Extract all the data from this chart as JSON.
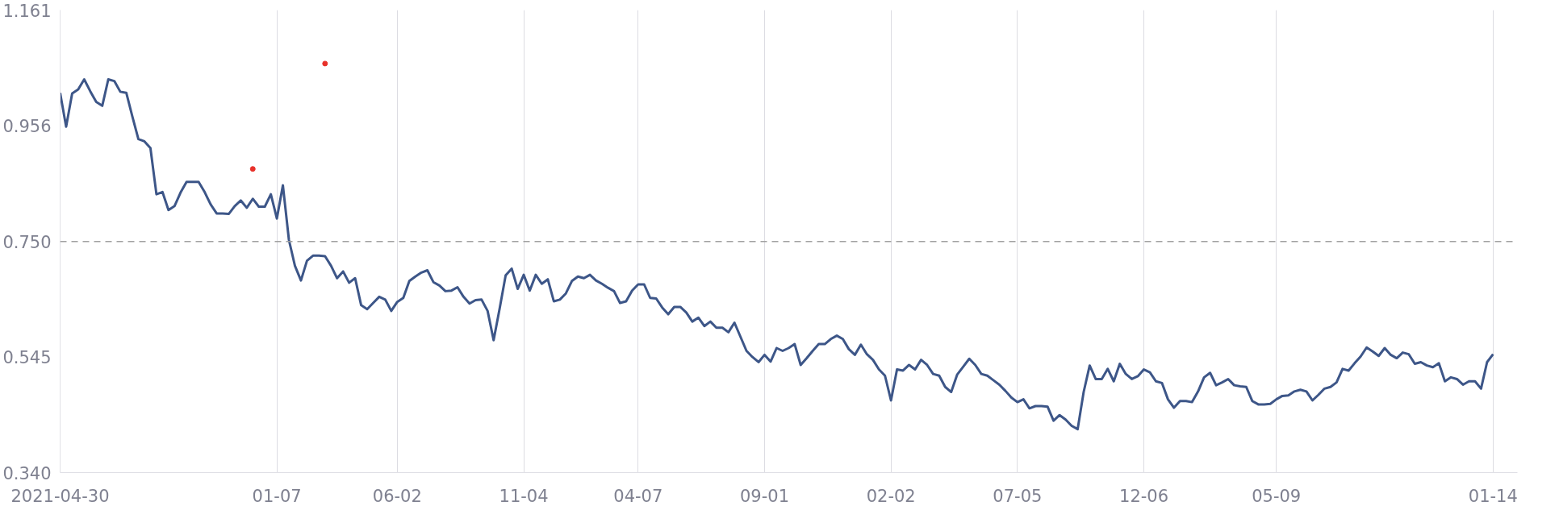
{
  "chart_data": {
    "type": "line",
    "categories": [
      "2021-04-30",
      null,
      null,
      null,
      null,
      null,
      null,
      null,
      null,
      null,
      null,
      null,
      null,
      null,
      null,
      null,
      null,
      null,
      null,
      null,
      null,
      null,
      null,
      null,
      null,
      null,
      null,
      null,
      null,
      null,
      null,
      null,
      null,
      null,
      null,
      null,
      "01-07",
      null,
      null,
      null,
      null,
      null,
      null,
      null,
      null,
      null,
      null,
      null,
      null,
      null,
      null,
      null,
      null,
      null,
      null,
      null,
      "06-02",
      null,
      null,
      null,
      null,
      null,
      null,
      null,
      null,
      null,
      null,
      null,
      null,
      null,
      null,
      null,
      null,
      null,
      null,
      null,
      null,
      "11-04",
      null,
      null,
      null,
      null,
      null,
      null,
      null,
      null,
      null,
      null,
      null,
      null,
      null,
      null,
      null,
      null,
      null,
      null,
      "04-07",
      null,
      null,
      null,
      null,
      null,
      null,
      null,
      null,
      null,
      null,
      null,
      null,
      null,
      null,
      null,
      null,
      null,
      null,
      null,
      null,
      "09-01",
      null,
      null,
      null,
      null,
      null,
      null,
      null,
      null,
      null,
      null,
      null,
      null,
      null,
      null,
      null,
      null,
      null,
      null,
      null,
      null,
      "02-02",
      null,
      null,
      null,
      null,
      null,
      null,
      null,
      null,
      null,
      null,
      null,
      null,
      null,
      null,
      null,
      null,
      null,
      null,
      null,
      null,
      "07-05",
      null,
      null,
      null,
      null,
      null,
      null,
      null,
      null,
      null,
      null,
      null,
      null,
      null,
      null,
      null,
      null,
      null,
      null,
      null,
      null,
      "12-06",
      null,
      null,
      null,
      null,
      null,
      null,
      null,
      null,
      null,
      null,
      null,
      null,
      null,
      null,
      null,
      null,
      null,
      null,
      null,
      null,
      null,
      "05-09",
      null,
      null,
      null,
      null,
      null,
      null,
      null,
      null,
      null,
      null,
      null,
      null,
      null,
      null,
      null,
      null,
      null,
      null,
      null,
      null,
      null,
      null,
      null,
      null,
      null,
      null,
      null,
      null,
      null,
      null,
      null,
      null,
      null,
      null,
      null,
      "01-14"
    ],
    "ylim": [
      0.34,
      1.161
    ],
    "yticks": [
      {
        "value": 0.34,
        "label": "0.340"
      },
      {
        "value": 0.545,
        "label": "0.545"
      },
      {
        "value": 0.75,
        "label": "0.750"
      },
      {
        "value": 0.956,
        "label": "0.956"
      },
      {
        "value": 1.161,
        "label": "1.161"
      }
    ],
    "grid": "x",
    "line_style": "solid",
    "ref_lines": [
      {
        "axis": "y",
        "value": 0.75,
        "color": "#a0a0a0",
        "line_style": "dashed"
      }
    ],
    "series": [
      {
        "color": "#3d5688",
        "values": [
          1.014,
          0.954,
          1.013,
          1.02,
          1.038,
          1.017,
          0.998,
          0.991,
          1.038,
          1.035,
          1.016,
          1.014,
          0.972,
          0.932,
          0.928,
          0.916,
          0.834,
          0.838,
          0.806,
          0.813,
          0.837,
          0.856,
          0.856,
          0.856,
          0.838,
          0.816,
          0.8,
          0.8,
          0.799,
          0.813,
          0.823,
          0.81,
          0.826,
          0.812,
          0.812,
          0.834,
          0.791,
          0.85,
          0.753,
          0.707,
          0.681,
          0.716,
          0.725,
          0.725,
          0.724,
          0.707,
          0.685,
          0.697,
          0.677,
          0.685,
          0.637,
          0.63,
          0.641,
          0.652,
          0.647,
          0.627,
          0.643,
          0.65,
          0.68,
          0.688,
          0.695,
          0.699,
          0.678,
          0.672,
          0.662,
          0.663,
          0.669,
          0.652,
          0.64,
          0.646,
          0.647,
          0.627,
          0.575,
          0.631,
          0.69,
          0.702,
          0.666,
          0.691,
          0.663,
          0.691,
          0.675,
          0.683,
          0.644,
          0.647,
          0.658,
          0.68,
          0.688,
          0.685,
          0.691,
          0.681,
          0.675,
          0.668,
          0.662,
          0.641,
          0.644,
          0.663,
          0.674,
          0.674,
          0.65,
          0.649,
          0.633,
          0.621,
          0.634,
          0.634,
          0.624,
          0.608,
          0.615,
          0.6,
          0.608,
          0.597,
          0.597,
          0.589,
          0.606,
          0.581,
          0.556,
          0.545,
          0.536,
          0.549,
          0.537,
          0.561,
          0.556,
          0.561,
          0.568,
          0.531,
          0.543,
          0.556,
          0.568,
          0.568,
          0.577,
          0.583,
          0.577,
          0.559,
          0.549,
          0.567,
          0.55,
          0.54,
          0.523,
          0.512,
          0.468,
          0.523,
          0.521,
          0.531,
          0.523,
          0.54,
          0.531,
          0.515,
          0.512,
          0.492,
          0.483,
          0.514,
          0.528,
          0.542,
          0.531,
          0.515,
          0.512,
          0.504,
          0.496,
          0.485,
          0.473,
          0.465,
          0.47,
          0.454,
          0.458,
          0.458,
          0.457,
          0.432,
          0.442,
          0.434,
          0.423,
          0.417,
          0.483,
          0.53,
          0.506,
          0.506,
          0.524,
          0.502,
          0.533,
          0.515,
          0.506,
          0.511,
          0.523,
          0.518,
          0.502,
          0.499,
          0.47,
          0.455,
          0.467,
          0.467,
          0.465,
          0.484,
          0.509,
          0.517,
          0.495,
          0.5,
          0.506,
          0.495,
          0.493,
          0.492,
          0.467,
          0.461,
          0.461,
          0.462,
          0.47,
          0.476,
          0.477,
          0.484,
          0.487,
          0.484,
          0.468,
          0.478,
          0.489,
          0.492,
          0.5,
          0.524,
          0.521,
          0.534,
          0.546,
          0.562,
          0.555,
          0.547,
          0.561,
          0.549,
          0.543,
          0.553,
          0.55,
          0.533,
          0.536,
          0.53,
          0.527,
          0.534,
          0.502,
          0.509,
          0.506,
          0.496,
          0.502,
          0.502,
          0.489,
          0.536,
          0.55
        ]
      },
      {
        "type": "scatter",
        "color": "#e8312a",
        "values": [
          null,
          null,
          null,
          null,
          null,
          null,
          null,
          null,
          null,
          null,
          null,
          null,
          null,
          null,
          null,
          null,
          null,
          null,
          null,
          null,
          null,
          null,
          null,
          null,
          null,
          null,
          null,
          null,
          null,
          null,
          null,
          null,
          0.879,
          null,
          null,
          null,
          null,
          null,
          null,
          null,
          null,
          null,
          null,
          null,
          1.066,
          null,
          null,
          null,
          null,
          null,
          null,
          null,
          null,
          null,
          null,
          null,
          null,
          null,
          null,
          null,
          null,
          null,
          null,
          null,
          null,
          null,
          null,
          null,
          null,
          null,
          null,
          null,
          null,
          null,
          null,
          null,
          null,
          null,
          null,
          null,
          null,
          null,
          null,
          null,
          null,
          null,
          null,
          null,
          null,
          null,
          null,
          null,
          null,
          null,
          null,
          null,
          null,
          null,
          null,
          null,
          null,
          null,
          null,
          null,
          null,
          null,
          null,
          null,
          null,
          null,
          null,
          null,
          null,
          null,
          null,
          null,
          null,
          null,
          null,
          null,
          null,
          null,
          null,
          null,
          null,
          null,
          null,
          null,
          null,
          null,
          null,
          null,
          null,
          null,
          null,
          null,
          null,
          null,
          null,
          null,
          null,
          null,
          null,
          null,
          null,
          null,
          null,
          null,
          null,
          null,
          null,
          null,
          null,
          null,
          null,
          null,
          null,
          null,
          null,
          null,
          null,
          null,
          null,
          null,
          null,
          null,
          null,
          null,
          null,
          null,
          null,
          null,
          null,
          null,
          null,
          null,
          null,
          null,
          null,
          null,
          null,
          null,
          null,
          null,
          null,
          null,
          null,
          null,
          null,
          null,
          null,
          null,
          null,
          null,
          null,
          null,
          null,
          null,
          null,
          null,
          null,
          null,
          null,
          null,
          null,
          null,
          null,
          null,
          null,
          null,
          null,
          null,
          null,
          null,
          null,
          null,
          null,
          null,
          null,
          null,
          null,
          null,
          null,
          null,
          null,
          null,
          null,
          null,
          null,
          null,
          null,
          null,
          null,
          null,
          null,
          null,
          null,
          null,
          null
        ]
      }
    ]
  }
}
